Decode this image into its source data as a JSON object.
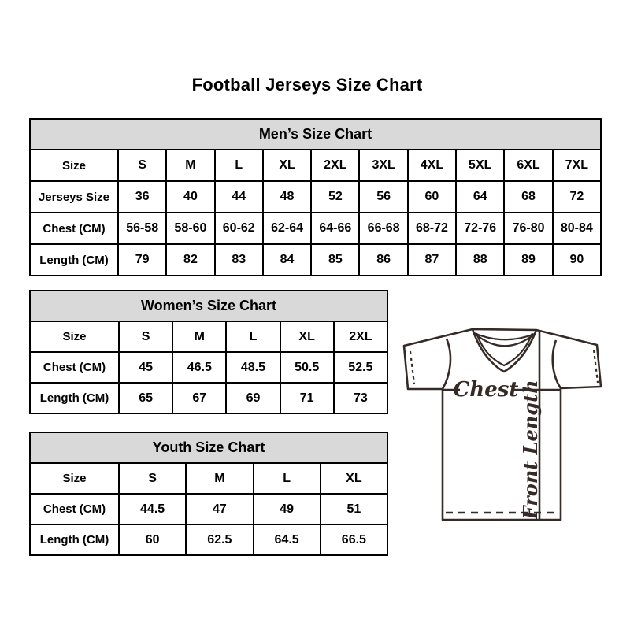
{
  "title": "Football Jerseys Size Chart",
  "colors": {
    "table_header_bg": "#d9d9d9",
    "table_border": "#000000",
    "jersey_stroke": "#352a26",
    "background": "#ffffff"
  },
  "chart_data": [
    {
      "type": "table",
      "title": "Men’s Size Chart",
      "rows": [
        {
          "label": "Size",
          "values": [
            "S",
            "M",
            "L",
            "XL",
            "2XL",
            "3XL",
            "4XL",
            "5XL",
            "6XL",
            "7XL"
          ]
        },
        {
          "label": "Jerseys Size",
          "values": [
            36,
            40,
            44,
            48,
            52,
            56,
            60,
            64,
            68,
            72
          ]
        },
        {
          "label": "Chest (CM)",
          "values": [
            "56-58",
            "58-60",
            "60-62",
            "62-64",
            "64-66",
            "66-68",
            "68-72",
            "72-76",
            "76-80",
            "80-84"
          ]
        },
        {
          "label": "Length (CM)",
          "values": [
            79,
            82,
            83,
            84,
            85,
            86,
            87,
            88,
            89,
            90
          ]
        }
      ]
    },
    {
      "type": "table",
      "title": "Women’s Size Chart",
      "rows": [
        {
          "label": "Size",
          "values": [
            "S",
            "M",
            "L",
            "XL",
            "2XL"
          ]
        },
        {
          "label": "Chest (CM)",
          "values": [
            45,
            46.5,
            48.5,
            50.5,
            52.5
          ]
        },
        {
          "label": "Length (CM)",
          "values": [
            65,
            67,
            69,
            71,
            73
          ]
        }
      ]
    },
    {
      "type": "table",
      "title": "Youth Size Chart",
      "rows": [
        {
          "label": "Size",
          "values": [
            "S",
            "M",
            "L",
            "XL"
          ]
        },
        {
          "label": "Chest (CM)",
          "values": [
            44.5,
            47,
            49,
            51
          ]
        },
        {
          "label": "Length (CM)",
          "values": [
            60,
            62.5,
            64.5,
            66.5
          ]
        }
      ]
    }
  ],
  "diagram": {
    "chest_label": "Chest",
    "front_length_label": "Front Length"
  }
}
